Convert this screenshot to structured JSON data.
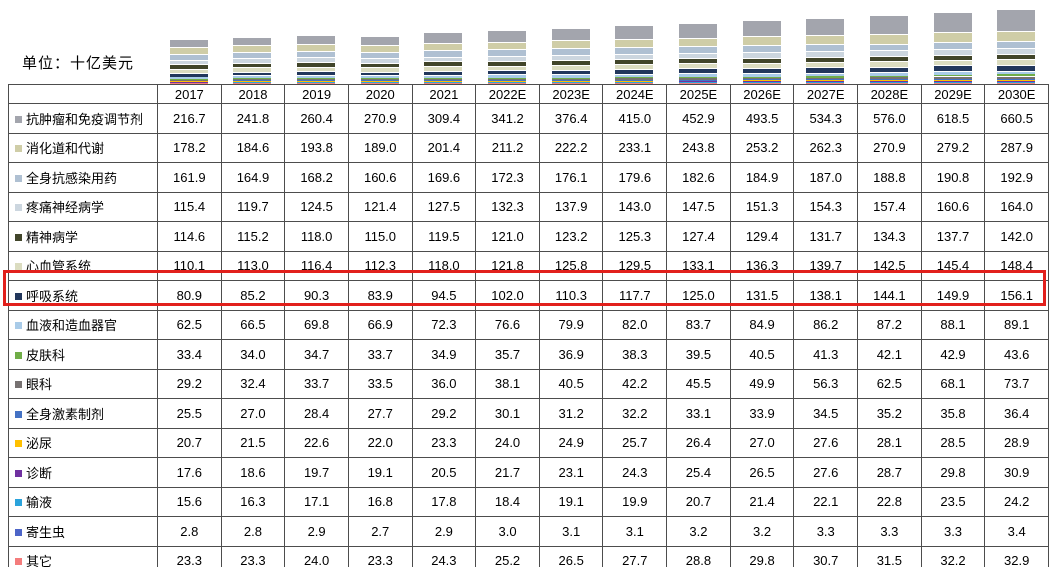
{
  "unit_label": "单位：十亿美元",
  "highlight": {
    "row_label": "呼吸系统",
    "row_index": 6,
    "color": "#e2201c"
  },
  "chart_data": {
    "type": "bar",
    "stacked": true,
    "title": "",
    "ylabel": "单位：十亿美元",
    "legend_position": "none",
    "grid": false,
    "categories": [
      "2017",
      "2018",
      "2019",
      "2020",
      "2021",
      "2022E",
      "2023E",
      "2024E",
      "2025E",
      "2026E",
      "2027E",
      "2028E",
      "2029E",
      "2030E"
    ],
    "series": [
      {
        "name": "抗肿瘤和免疫调节剂",
        "color": "#a3a5ad",
        "values": [
          216.7,
          241.8,
          260.4,
          270.9,
          309.4,
          341.2,
          376.4,
          415.0,
          452.9,
          493.5,
          534.3,
          576.0,
          618.5,
          660.5
        ]
      },
      {
        "name": "消化道和代谢",
        "color": "#cfcda7",
        "values": [
          178.2,
          184.6,
          193.8,
          189.0,
          201.4,
          211.2,
          222.2,
          233.1,
          243.8,
          253.2,
          262.3,
          270.9,
          279.2,
          287.9
        ]
      },
      {
        "name": "全身抗感染用药",
        "color": "#afc0d2",
        "values": [
          161.9,
          164.9,
          168.2,
          160.6,
          169.6,
          172.3,
          176.1,
          179.6,
          182.6,
          184.9,
          187.0,
          188.8,
          190.8,
          192.9
        ]
      },
      {
        "name": "疼痛神经病学",
        "color": "#ccd6df",
        "values": [
          115.4,
          119.7,
          124.5,
          121.4,
          127.5,
          132.3,
          137.9,
          143.0,
          147.5,
          151.3,
          154.3,
          157.4,
          160.6,
          164.0
        ]
      },
      {
        "name": "精神病学",
        "color": "#41452a",
        "values": [
          114.6,
          115.2,
          118.0,
          115.0,
          119.5,
          121.0,
          123.2,
          125.3,
          127.4,
          129.4,
          131.7,
          134.3,
          137.7,
          142.0
        ]
      },
      {
        "name": "心血管系统",
        "color": "#dbdcc0",
        "values": [
          110.1,
          113.0,
          116.4,
          112.3,
          118.0,
          121.8,
          125.8,
          129.5,
          133.1,
          136.3,
          139.7,
          142.5,
          145.4,
          148.4
        ]
      },
      {
        "name": "呼吸系统",
        "color": "#22375c",
        "values": [
          80.9,
          85.2,
          90.3,
          83.9,
          94.5,
          102.0,
          110.3,
          117.7,
          125.0,
          131.5,
          138.1,
          144.1,
          149.9,
          156.1
        ]
      },
      {
        "name": "血液和造血器官",
        "color": "#a9cbe8",
        "values": [
          62.5,
          66.5,
          69.8,
          66.9,
          72.3,
          76.6,
          79.9,
          82.0,
          83.7,
          84.9,
          86.2,
          87.2,
          88.1,
          89.1
        ]
      },
      {
        "name": "皮肤科",
        "color": "#70ad47",
        "values": [
          33.4,
          34.0,
          34.7,
          33.7,
          34.9,
          35.7,
          36.9,
          38.3,
          39.5,
          40.5,
          41.3,
          42.1,
          42.9,
          43.6
        ]
      },
      {
        "name": "眼科",
        "color": "#767171",
        "values": [
          29.2,
          32.4,
          33.7,
          33.5,
          36.0,
          38.1,
          40.5,
          42.2,
          45.5,
          49.9,
          56.3,
          62.5,
          68.1,
          73.7
        ]
      },
      {
        "name": "全身激素制剂",
        "color": "#4472c4",
        "values": [
          25.5,
          27.0,
          28.4,
          27.7,
          29.2,
          30.1,
          31.2,
          32.2,
          33.1,
          33.9,
          34.5,
          35.2,
          35.8,
          36.4
        ]
      },
      {
        "name": "泌尿",
        "color": "#ffc000",
        "values": [
          20.7,
          21.5,
          22.6,
          22.0,
          23.3,
          24.0,
          24.9,
          25.7,
          26.4,
          27.0,
          27.6,
          28.1,
          28.5,
          28.9
        ]
      },
      {
        "name": "诊断",
        "color": "#7030a0",
        "values": [
          17.6,
          18.6,
          19.7,
          19.1,
          20.5,
          21.7,
          23.1,
          24.3,
          25.4,
          26.5,
          27.6,
          28.7,
          29.8,
          30.9
        ]
      },
      {
        "name": "输液",
        "color": "#2aa3dc",
        "values": [
          15.6,
          16.3,
          17.1,
          16.8,
          17.8,
          18.4,
          19.1,
          19.9,
          20.7,
          21.4,
          22.1,
          22.8,
          23.5,
          24.2
        ]
      },
      {
        "name": "寄生虫",
        "color": "#4d65c8",
        "values": [
          2.8,
          2.8,
          2.9,
          2.7,
          2.9,
          3.0,
          3.1,
          3.1,
          3.2,
          3.2,
          3.3,
          3.3,
          3.3,
          3.4
        ]
      },
      {
        "name": "其它",
        "color": "#f47c7c",
        "values": [
          23.3,
          23.3,
          24.0,
          23.3,
          24.3,
          25.2,
          26.5,
          27.7,
          28.8,
          29.8,
          30.7,
          31.5,
          32.2,
          32.9
        ]
      }
    ]
  }
}
